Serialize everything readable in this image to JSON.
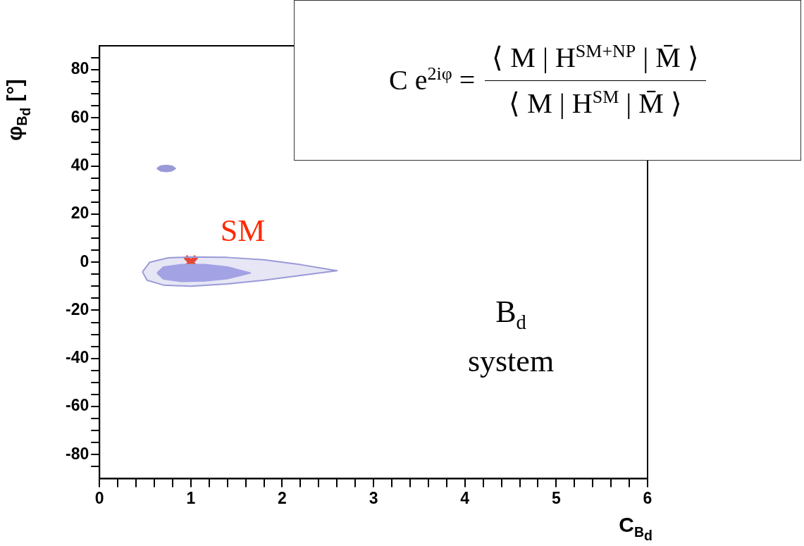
{
  "chart_data": {
    "type": "area",
    "xlabel": "C$_{B}$$_{d}$",
    "ylabel": "φ$_{B}$$_{d}$ [°]",
    "xlim": [
      0,
      6
    ],
    "ylim": [
      -90,
      90
    ],
    "xticks": [
      0,
      {
        "value": 0.2,
        "label": null
      },
      {
        "value": 0.4,
        "label": null
      },
      {
        "value": 0.6,
        "label": null
      },
      {
        "value": 0.8,
        "label": null
      },
      1,
      {
        "value": 1.2,
        "label": null
      },
      {
        "value": 1.4,
        "label": null
      },
      {
        "value": 1.6,
        "label": null
      },
      {
        "value": 1.8,
        "label": null
      },
      2,
      {
        "value": 2.2,
        "label": null
      },
      {
        "value": 2.4,
        "label": null
      },
      {
        "value": 2.6,
        "label": null
      },
      {
        "value": 2.8,
        "label": null
      },
      3,
      {
        "value": 3.2,
        "label": null
      },
      {
        "value": 3.4,
        "label": null
      },
      {
        "value": 3.6,
        "label": null
      },
      {
        "value": 3.8,
        "label": null
      },
      4,
      {
        "value": 4.2,
        "label": null
      },
      {
        "value": 4.4,
        "label": null
      },
      {
        "value": 4.6,
        "label": null
      },
      {
        "value": 4.8,
        "label": null
      },
      5,
      {
        "value": 5.2,
        "label": null
      },
      {
        "value": 5.4,
        "label": null
      },
      {
        "value": 5.6,
        "label": null
      },
      {
        "value": 5.8,
        "label": null
      },
      6
    ],
    "yticks": [
      {
        "value": -85,
        "label": null
      },
      -80,
      {
        "value": -75,
        "label": null
      },
      {
        "value": -70,
        "label": null
      },
      {
        "value": -65,
        "label": null
      },
      -60,
      {
        "value": -55,
        "label": null
      },
      {
        "value": -50,
        "label": null
      },
      {
        "value": -45,
        "label": null
      },
      -40,
      {
        "value": -35,
        "label": null
      },
      {
        "value": -30,
        "label": null
      },
      {
        "value": -25,
        "label": null
      },
      -20,
      {
        "value": -15,
        "label": null
      },
      {
        "value": -10,
        "label": null
      },
      {
        "value": -5,
        "label": null
      },
      0,
      {
        "value": 5,
        "label": null
      },
      {
        "value": 10,
        "label": null
      },
      {
        "value": 15,
        "label": null
      },
      20,
      {
        "value": 25,
        "label": null
      },
      {
        "value": 30,
        "label": null
      },
      {
        "value": 35,
        "label": null
      },
      40,
      {
        "value": 45,
        "label": null
      },
      {
        "value": 50,
        "label": null
      },
      {
        "value": 55,
        "label": null
      },
      60,
      {
        "value": 65,
        "label": null
      },
      {
        "value": 70,
        "label": null
      },
      {
        "value": 75,
        "label": null
      },
      80,
      {
        "value": 85,
        "label": null
      }
    ],
    "grid": false,
    "legend": false,
    "marker": "none",
    "line_style": "solid",
    "series": [
      {
        "color": "#9a9ad8",
        "x": [
          0.47,
          0.55,
          0.75,
          1.0,
          1.4,
          1.8,
          2.2,
          2.6,
          2.2,
          1.8,
          1.4,
          1.0,
          0.7,
          0.52,
          0.47
        ],
        "values": [
          -4,
          0,
          1.8,
          2.2,
          2,
          1,
          -1,
          -3.5,
          -5.5,
          -7.5,
          -9,
          -10,
          -9.5,
          -7.5,
          -4
        ]
      },
      {
        "color": "#a5a5e8",
        "x": [
          0.63,
          0.7,
          0.9,
          1.15,
          1.4,
          1.65,
          1.4,
          1.15,
          0.9,
          0.7,
          0.63
        ],
        "values": [
          -4.5,
          -2,
          -1,
          -1,
          -2,
          -4.5,
          -6.8,
          -7.8,
          -8,
          -7,
          -4.5
        ]
      },
      {
        "color": "#9a9ad8",
        "x": [
          0.63,
          0.67,
          0.73,
          0.79,
          0.83,
          0.79,
          0.73,
          0.67,
          0.63
        ],
        "values": [
          39,
          40,
          40.3,
          40,
          39,
          38,
          37.7,
          38,
          39
        ]
      },
      {
        "type": "scatter",
        "name": "SM",
        "color": "#ff2a00",
        "marker": "cross",
        "x": [
          1
        ],
        "values": [
          0
        ]
      }
    ],
    "annotations": [
      "B$_{d}$ system",
      "C e$^{2iφ}$ =",
      "⟨ M | H$^{SM+NP}$ | M̄ ⟩",
      "⟨ M | H$^{SM}$ | M̄ ⟩"
    ]
  }
}
